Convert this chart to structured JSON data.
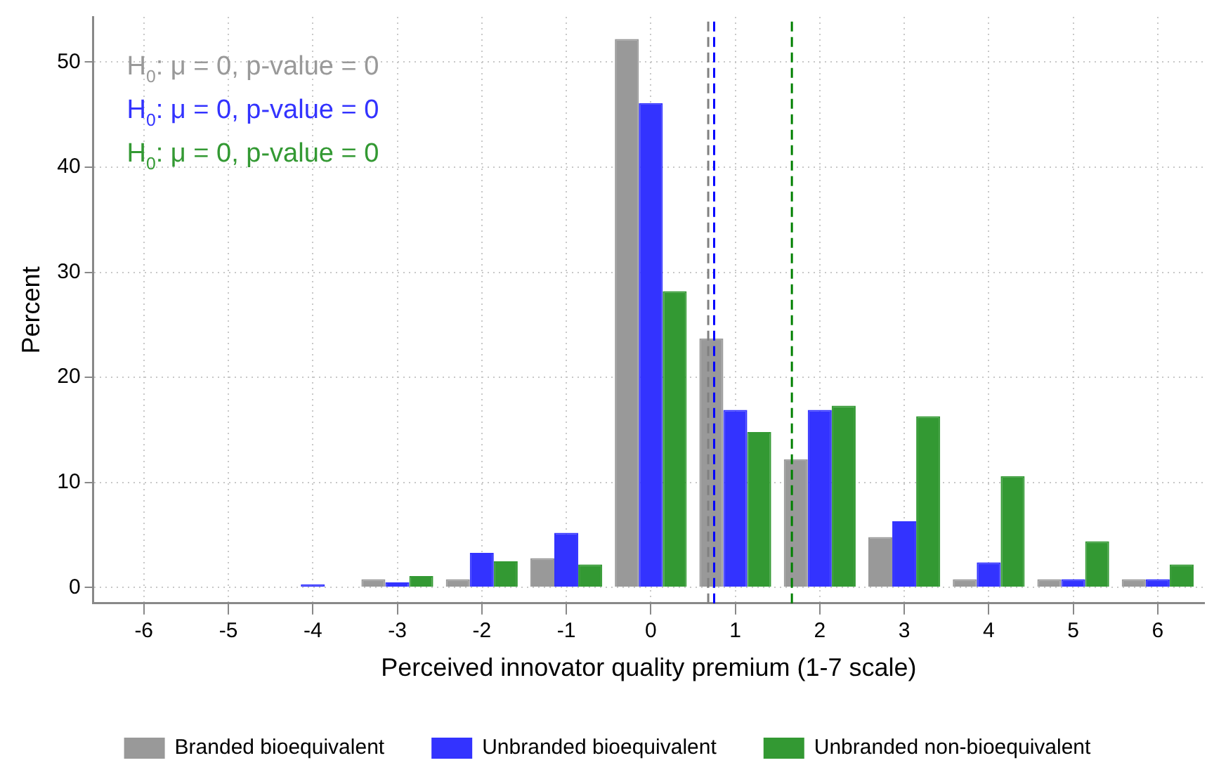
{
  "chart_data": {
    "type": "bar",
    "xlabel": "Perceived innovator quality premium (1-7 scale)",
    "ylabel": "Percent",
    "x": [
      -4,
      -3,
      -2,
      -1,
      0,
      1,
      2,
      3,
      4,
      5,
      6
    ],
    "series": [
      {
        "name": "Branded bioequivalent",
        "color": "#999999",
        "values": [
          null,
          0.8,
          0.8,
          2.8,
          52.2,
          23.7,
          12.2,
          4.8,
          0.8,
          0.8,
          0.8
        ]
      },
      {
        "name": "Unbranded bioequivalent",
        "color": "#3333ff",
        "values": [
          0.3,
          0.5,
          3.3,
          5.2,
          46.1,
          16.9,
          16.9,
          6.3,
          2.4,
          0.8,
          0.8
        ]
      },
      {
        "name": "Unbranded non-bioequivalent",
        "color": "#339933",
        "values": [
          null,
          1.1,
          2.5,
          2.2,
          28.2,
          14.8,
          17.3,
          16.3,
          10.6,
          4.4,
          2.2
        ]
      }
    ],
    "xlim": [
      -6.6,
      6.55
    ],
    "xticks": [
      -6,
      -5,
      -4,
      -3,
      -2,
      -1,
      0,
      1,
      2,
      3,
      4,
      5,
      6
    ],
    "ylim": [
      -1.5,
      54.3
    ],
    "yticks": [
      0,
      10,
      20,
      30,
      40,
      50
    ],
    "ref_lines": [
      {
        "axis": "x",
        "value": 0.68,
        "color": "#808080",
        "line_style": "dashed"
      },
      {
        "axis": "x",
        "value": 0.75,
        "color": "#0000ff",
        "line_style": "dashed"
      },
      {
        "axis": "x",
        "value": 1.67,
        "color": "#008000",
        "line_style": "dashed"
      }
    ],
    "annotations": [
      "H$_{0}$: μ = 0, p-value = 0",
      "H$_{0}$: μ = 0, p-value = 0",
      "H$_{0}$: μ = 0, p-value = 0"
    ],
    "grid": true,
    "legend": "bottom"
  }
}
